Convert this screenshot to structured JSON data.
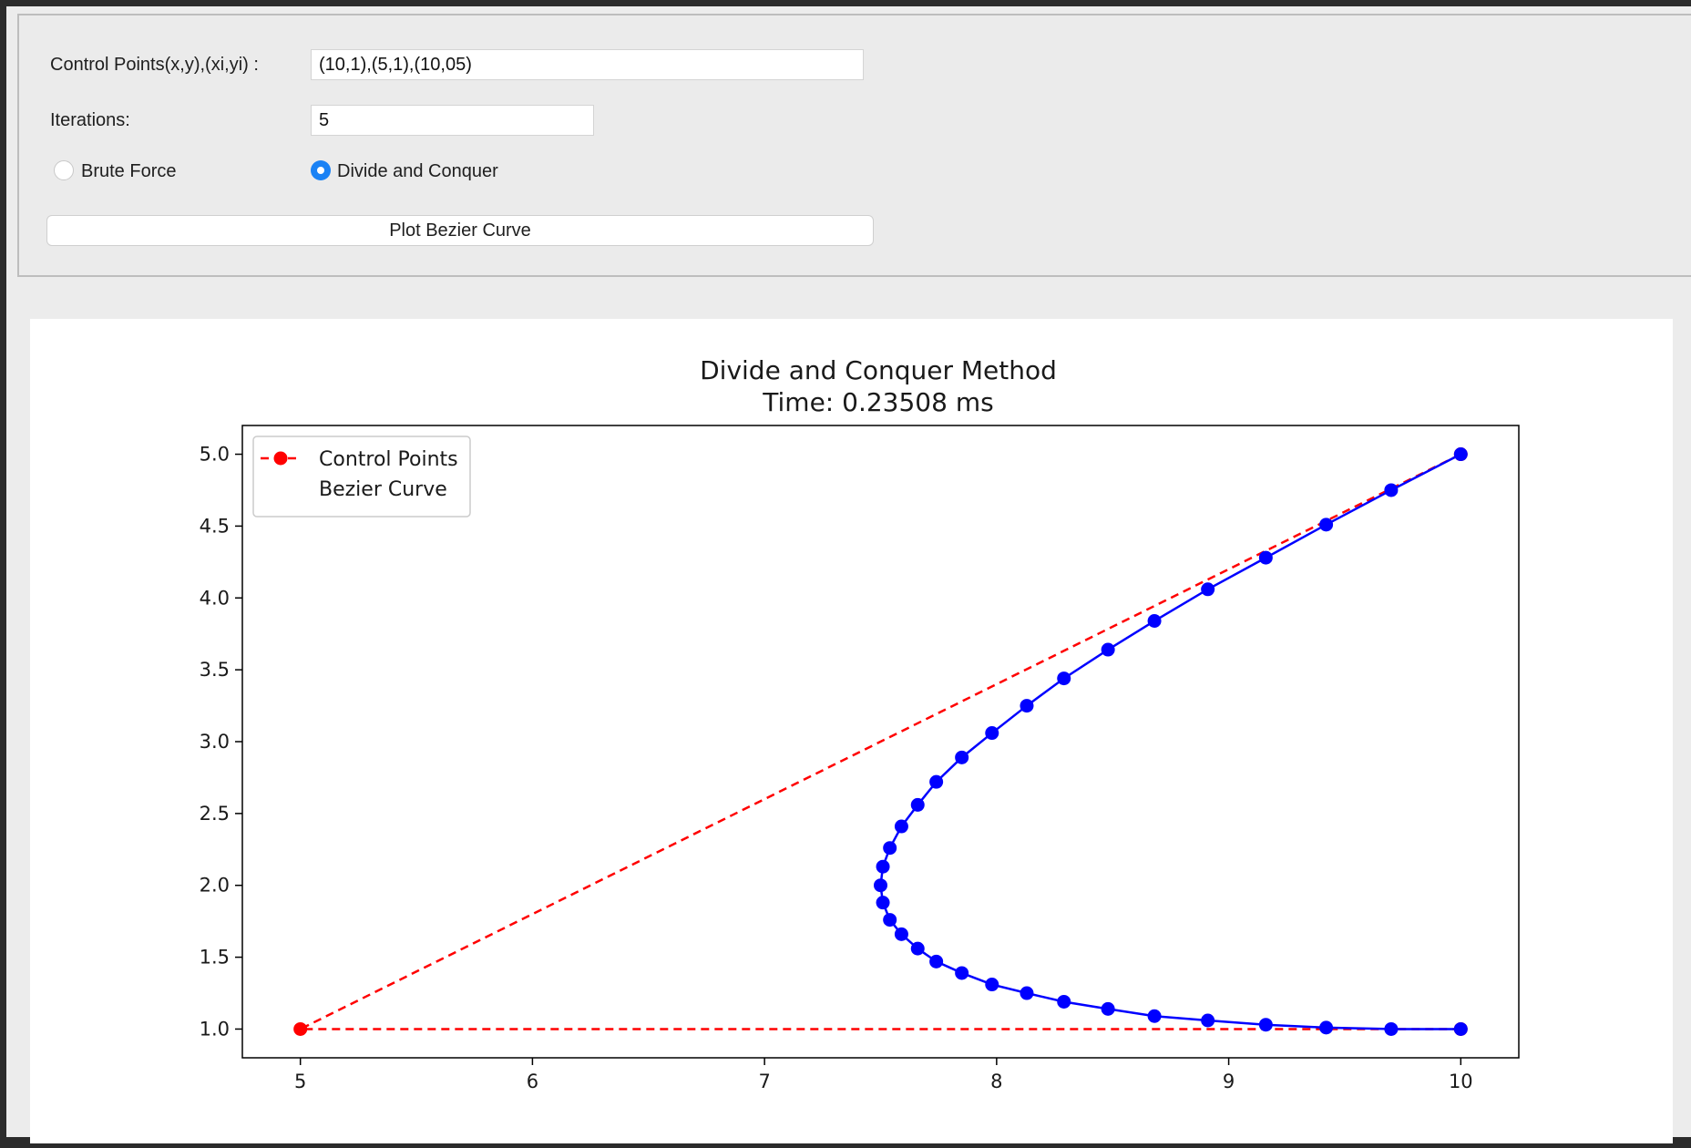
{
  "controls": {
    "control_points_label": "Control Points(x,y),(xi,yi) :",
    "control_points_value": "(10,1),(5,1),(10,05)",
    "iterations_label": "Iterations:",
    "iterations_value": "5",
    "radio_brute_force": "Brute Force",
    "radio_divide_conquer": "Divide and Conquer",
    "selected_method": "Divide and Conquer",
    "plot_button": "Plot Bezier Curve"
  },
  "colors": {
    "accent": "#1a82f5",
    "control_points": "#ff0000",
    "bezier_curve": "#0000ff"
  },
  "chart_data": {
    "type": "line",
    "title": "Divide and Conquer Method",
    "subtitle": "Time: 0.23508 ms",
    "xlabel": "",
    "ylabel": "",
    "xlim": [
      4.75,
      10.25
    ],
    "ylim": [
      0.8,
      5.2
    ],
    "x_ticks": [
      "5",
      "6",
      "7",
      "8",
      "9",
      "10"
    ],
    "y_ticks": [
      "1.0",
      "1.5",
      "2.0",
      "2.5",
      "3.0",
      "3.5",
      "4.0",
      "4.5",
      "5.0"
    ],
    "grid": false,
    "legend_position": "top-left",
    "series": [
      {
        "name": "Control Points",
        "style": "dashed-marker",
        "color": "#ff0000",
        "x": [
          10,
          5,
          10
        ],
        "y": [
          1,
          1,
          5
        ]
      },
      {
        "name": "Bezier Curve",
        "style": "solid-marker",
        "color": "#0000ff",
        "x": [
          10,
          9.7,
          9.42,
          9.16,
          8.91,
          8.68,
          8.48,
          8.29,
          8.13,
          7.98,
          7.85,
          7.74,
          7.66,
          7.59,
          7.54,
          7.51,
          7.5,
          7.51,
          7.54,
          7.59,
          7.66,
          7.74,
          7.85,
          7.98,
          8.13,
          8.29,
          8.48,
          8.68,
          8.91,
          9.16,
          9.42,
          9.7,
          10
        ],
        "y": [
          1,
          1.0,
          1.01,
          1.03,
          1.06,
          1.09,
          1.14,
          1.19,
          1.25,
          1.31,
          1.39,
          1.47,
          1.56,
          1.66,
          1.76,
          1.88,
          2.0,
          2.13,
          2.26,
          2.41,
          2.56,
          2.72,
          2.89,
          3.06,
          3.25,
          3.44,
          3.64,
          3.84,
          4.06,
          4.28,
          4.51,
          4.75,
          5
        ]
      }
    ]
  }
}
